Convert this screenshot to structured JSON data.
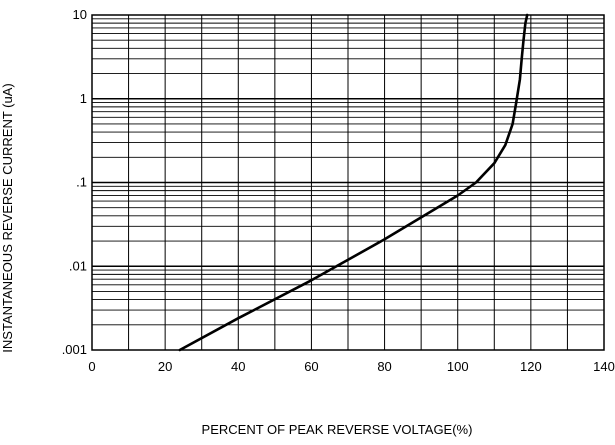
{
  "chart_data": {
    "type": "line",
    "title": "",
    "xlabel": "PERCENT OF PEAK REVERSE VOLTAGE(%)",
    "ylabel": "INSTANTANEOUS REVERSE CURRENT (uA)",
    "xlim": [
      0,
      140
    ],
    "ylim": [
      0.001,
      10
    ],
    "yscale": "log",
    "grid": true,
    "xticks": [
      0,
      20,
      40,
      60,
      80,
      100,
      120,
      140
    ],
    "xtick_labels": [
      "0",
      "20",
      "40",
      "60",
      "80",
      "100",
      "120",
      "140"
    ],
    "yticks": [
      0.001,
      0.01,
      0.1,
      1,
      10
    ],
    "ytick_labels": [
      ".001",
      ".01",
      ".1",
      "1",
      "10"
    ],
    "series": [
      {
        "x": [
          24,
          40,
          60,
          80,
          100,
          105,
          110,
          113,
          115,
          116,
          117,
          117.5,
          118,
          118.5,
          119
        ],
        "y": [
          0.001,
          0.0024,
          0.0068,
          0.021,
          0.07,
          0.1,
          0.17,
          0.28,
          0.5,
          0.9,
          1.7,
          3,
          5,
          8,
          10
        ]
      }
    ]
  }
}
